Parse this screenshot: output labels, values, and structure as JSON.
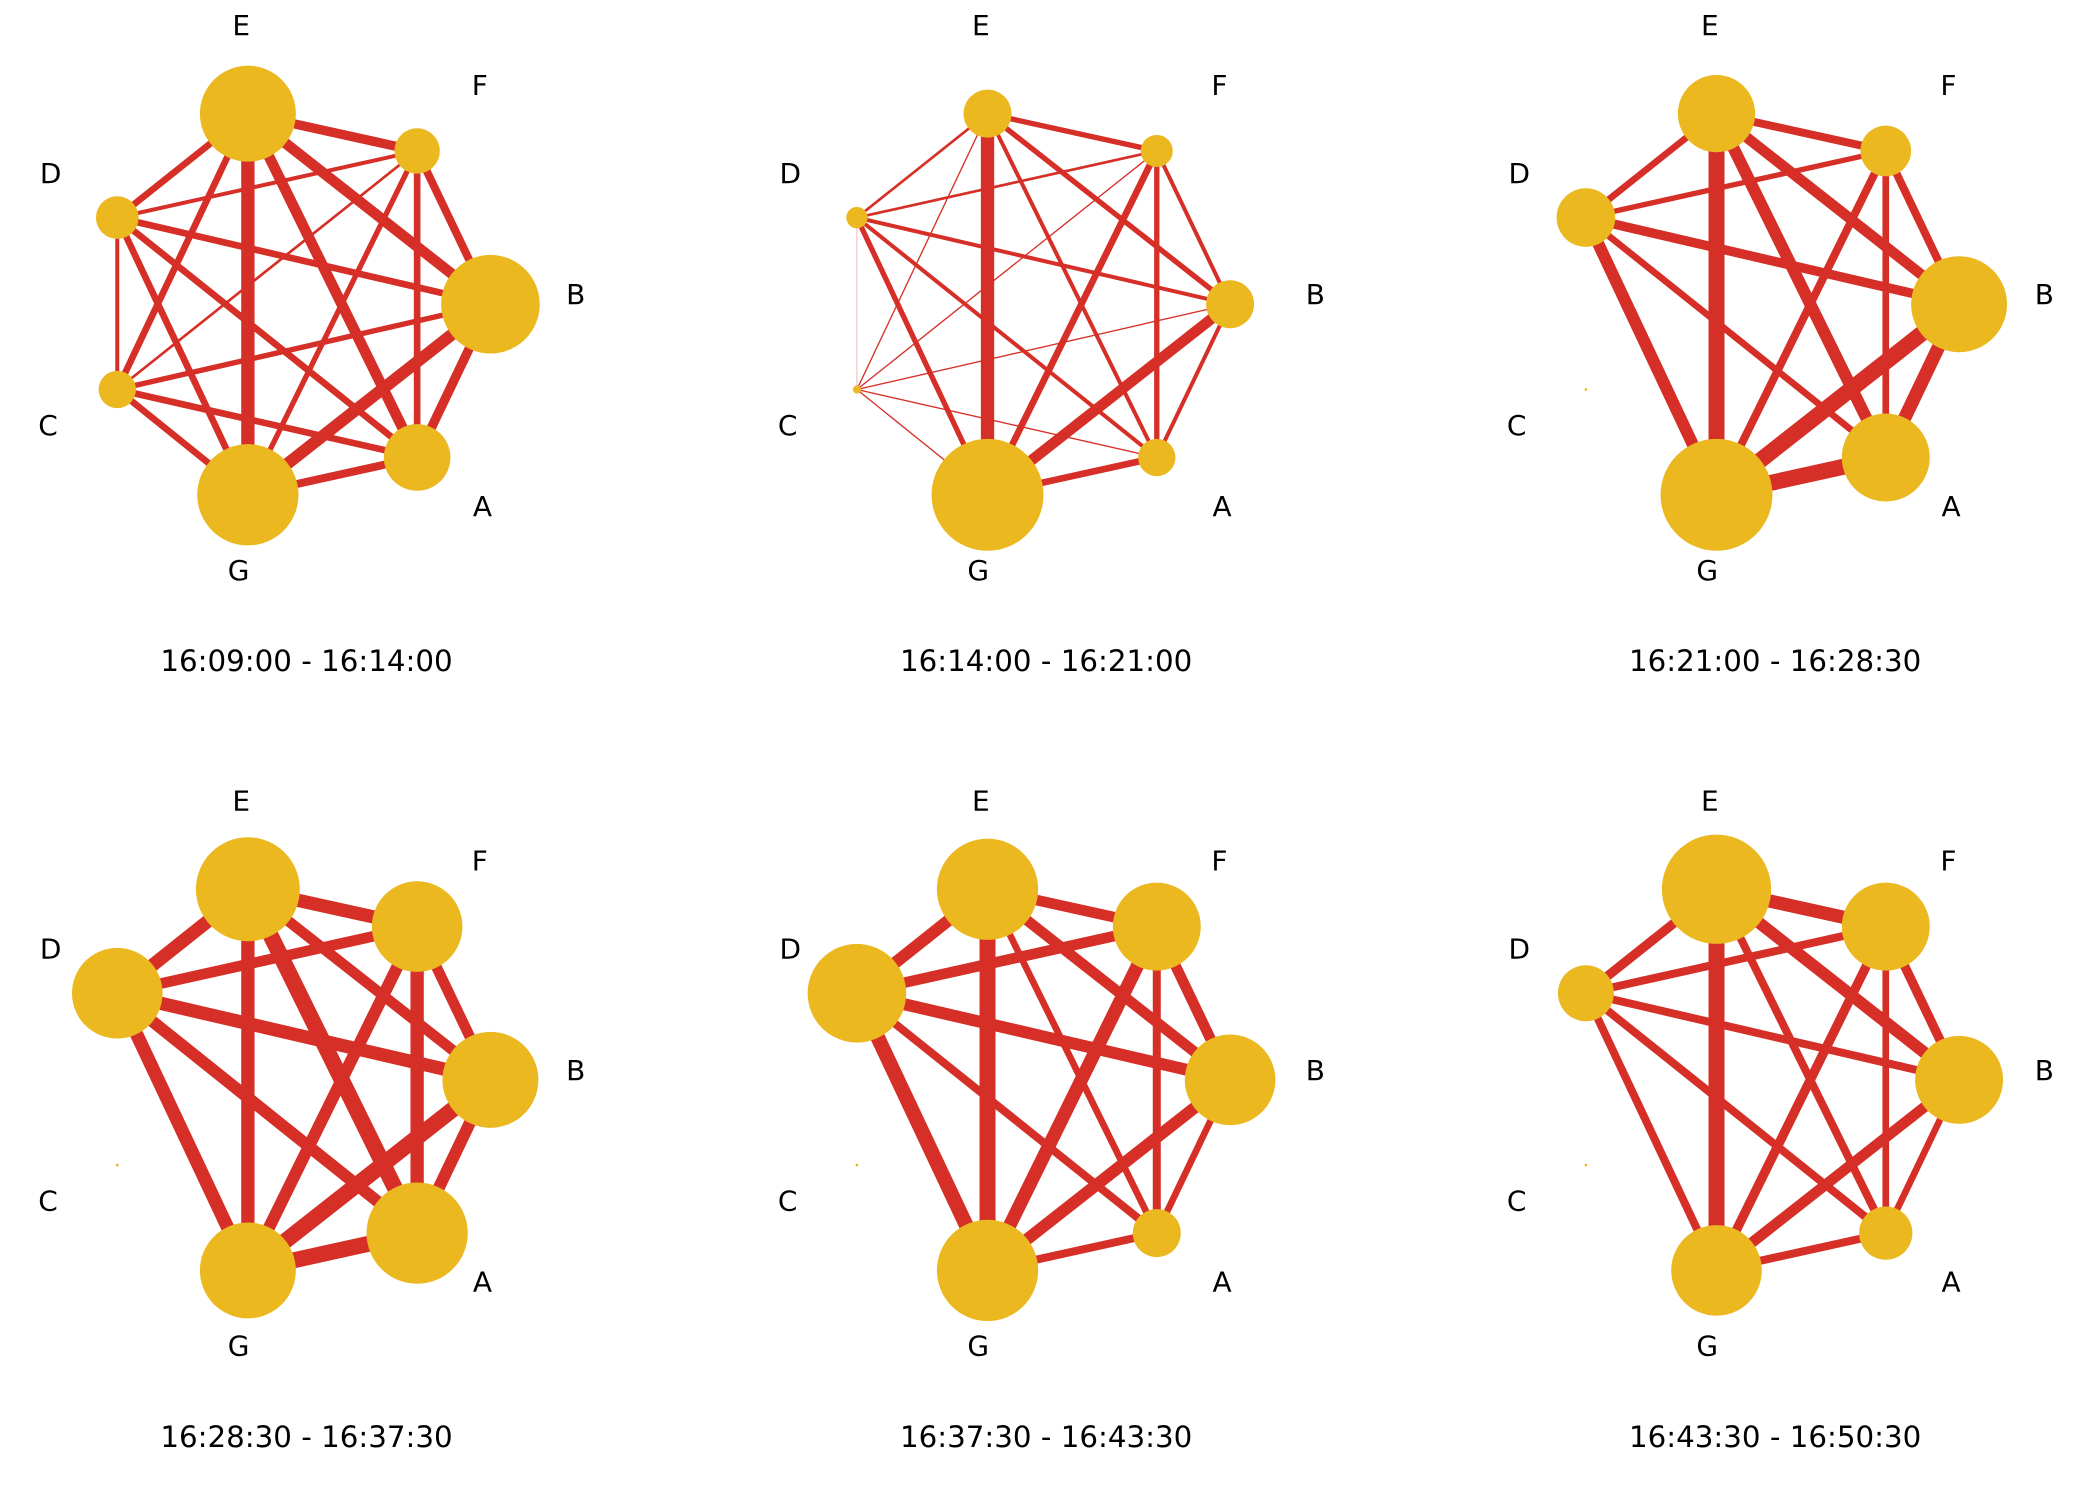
{
  "panels": [
    {
      "title": "16:09:00 - 16:14:00",
      "nodes": [
        {
          "label": "E",
          "value": 36
        },
        {
          "label": "F",
          "value": 17
        },
        {
          "label": "B",
          "value": 37
        },
        {
          "label": "A",
          "value": 25
        },
        {
          "label": "G",
          "value": 38
        },
        {
          "label": "C",
          "value": 14
        },
        {
          "label": "D",
          "value": 16
        }
      ],
      "edges": [
        {
          "source": "E",
          "target": "F",
          "weight": 7
        },
        {
          "source": "E",
          "target": "B",
          "weight": 8
        },
        {
          "source": "E",
          "target": "A",
          "weight": 8
        },
        {
          "source": "E",
          "target": "G",
          "weight": 10
        },
        {
          "source": "E",
          "target": "C",
          "weight": 5
        },
        {
          "source": "E",
          "target": "D",
          "weight": 5
        },
        {
          "source": "F",
          "target": "B",
          "weight": 6
        },
        {
          "source": "F",
          "target": "A",
          "weight": 5
        },
        {
          "source": "F",
          "target": "G",
          "weight": 4
        },
        {
          "source": "F",
          "target": "C",
          "weight": 2
        },
        {
          "source": "F",
          "target": "D",
          "weight": 3
        },
        {
          "source": "B",
          "target": "A",
          "weight": 7
        },
        {
          "source": "B",
          "target": "G",
          "weight": 9
        },
        {
          "source": "B",
          "target": "C",
          "weight": 4
        },
        {
          "source": "B",
          "target": "D",
          "weight": 5
        },
        {
          "source": "A",
          "target": "G",
          "weight": 6
        },
        {
          "source": "A",
          "target": "C",
          "weight": 5
        },
        {
          "source": "A",
          "target": "D",
          "weight": 5
        },
        {
          "source": "G",
          "target": "C",
          "weight": 5
        },
        {
          "source": "G",
          "target": "D",
          "weight": 5
        },
        {
          "source": "C",
          "target": "D",
          "weight": 3
        }
      ]
    },
    {
      "title": "16:14:00 - 16:21:00",
      "nodes": [
        {
          "label": "E",
          "value": 18
        },
        {
          "label": "F",
          "value": 12
        },
        {
          "label": "B",
          "value": 18
        },
        {
          "label": "A",
          "value": 14
        },
        {
          "label": "G",
          "value": 42
        },
        {
          "label": "C",
          "value": 3
        },
        {
          "label": "D",
          "value": 8
        }
      ],
      "edges": [
        {
          "source": "E",
          "target": "F",
          "weight": 4
        },
        {
          "source": "E",
          "target": "B",
          "weight": 4
        },
        {
          "source": "E",
          "target": "A",
          "weight": 3
        },
        {
          "source": "E",
          "target": "G",
          "weight": 10
        },
        {
          "source": "E",
          "target": "C",
          "weight": 1
        },
        {
          "source": "E",
          "target": "D",
          "weight": 2
        },
        {
          "source": "F",
          "target": "B",
          "weight": 3
        },
        {
          "source": "F",
          "target": "A",
          "weight": 4
        },
        {
          "source": "F",
          "target": "G",
          "weight": 5
        },
        {
          "source": "F",
          "target": "C",
          "weight": 1
        },
        {
          "source": "F",
          "target": "D",
          "weight": 2
        },
        {
          "source": "B",
          "target": "A",
          "weight": 3
        },
        {
          "source": "B",
          "target": "G",
          "weight": 8
        },
        {
          "source": "B",
          "target": "C",
          "weight": 1
        },
        {
          "source": "B",
          "target": "D",
          "weight": 3
        },
        {
          "source": "A",
          "target": "G",
          "weight": 5
        },
        {
          "source": "A",
          "target": "C",
          "weight": 1
        },
        {
          "source": "A",
          "target": "D",
          "weight": 3
        },
        {
          "source": "G",
          "target": "C",
          "weight": 1
        },
        {
          "source": "G",
          "target": "D",
          "weight": 4
        },
        {
          "source": "C",
          "target": "D",
          "weight": 0.5
        }
      ]
    },
    {
      "title": "16:21:00 - 16:28:30",
      "nodes": [
        {
          "label": "E",
          "value": 29
        },
        {
          "label": "F",
          "value": 19
        },
        {
          "label": "B",
          "value": 36
        },
        {
          "label": "A",
          "value": 33
        },
        {
          "label": "G",
          "value": 42
        },
        {
          "label": "C",
          "value": 1
        },
        {
          "label": "D",
          "value": 22
        }
      ],
      "edges": [
        {
          "source": "E",
          "target": "F",
          "weight": 6
        },
        {
          "source": "E",
          "target": "B",
          "weight": 8
        },
        {
          "source": "E",
          "target": "A",
          "weight": 9
        },
        {
          "source": "E",
          "target": "G",
          "weight": 12
        },
        {
          "source": "E",
          "target": "D",
          "weight": 5
        },
        {
          "source": "F",
          "target": "B",
          "weight": 6
        },
        {
          "source": "F",
          "target": "A",
          "weight": 5
        },
        {
          "source": "F",
          "target": "G",
          "weight": 6
        },
        {
          "source": "F",
          "target": "D",
          "weight": 4
        },
        {
          "source": "B",
          "target": "A",
          "weight": 10
        },
        {
          "source": "B",
          "target": "G",
          "weight": 12
        },
        {
          "source": "B",
          "target": "D",
          "weight": 7
        },
        {
          "source": "A",
          "target": "G",
          "weight": 12
        },
        {
          "source": "A",
          "target": "D",
          "weight": 5
        },
        {
          "source": "G",
          "target": "D",
          "weight": 9
        }
      ]
    },
    {
      "title": "16:28:30 - 16:37:30",
      "nodes": [
        {
          "label": "E",
          "value": 39
        },
        {
          "label": "F",
          "value": 34
        },
        {
          "label": "B",
          "value": 36
        },
        {
          "label": "A",
          "value": 38
        },
        {
          "label": "G",
          "value": 36
        },
        {
          "label": "C",
          "value": 1
        },
        {
          "label": "D",
          "value": 34
        }
      ],
      "edges": [
        {
          "source": "E",
          "target": "F",
          "weight": 10
        },
        {
          "source": "E",
          "target": "B",
          "weight": 8
        },
        {
          "source": "E",
          "target": "A",
          "weight": 12
        },
        {
          "source": "E",
          "target": "G",
          "weight": 10
        },
        {
          "source": "E",
          "target": "D",
          "weight": 10
        },
        {
          "source": "F",
          "target": "B",
          "weight": 8
        },
        {
          "source": "F",
          "target": "A",
          "weight": 10
        },
        {
          "source": "F",
          "target": "G",
          "weight": 9
        },
        {
          "source": "F",
          "target": "D",
          "weight": 8
        },
        {
          "source": "B",
          "target": "A",
          "weight": 9
        },
        {
          "source": "B",
          "target": "G",
          "weight": 12
        },
        {
          "source": "B",
          "target": "D",
          "weight": 10
        },
        {
          "source": "A",
          "target": "G",
          "weight": 12
        },
        {
          "source": "A",
          "target": "D",
          "weight": 9
        },
        {
          "source": "G",
          "target": "D",
          "weight": 10
        }
      ]
    },
    {
      "title": "16:37:30 - 16:43:30",
      "nodes": [
        {
          "label": "E",
          "value": 38
        },
        {
          "label": "F",
          "value": 33
        },
        {
          "label": "B",
          "value": 34
        },
        {
          "label": "A",
          "value": 18
        },
        {
          "label": "G",
          "value": 38
        },
        {
          "label": "C",
          "value": 1
        },
        {
          "label": "D",
          "value": 37
        }
      ],
      "edges": [
        {
          "source": "E",
          "target": "F",
          "weight": 8
        },
        {
          "source": "E",
          "target": "B",
          "weight": 8
        },
        {
          "source": "E",
          "target": "A",
          "weight": 5
        },
        {
          "source": "E",
          "target": "G",
          "weight": 12
        },
        {
          "source": "E",
          "target": "D",
          "weight": 9
        },
        {
          "source": "F",
          "target": "B",
          "weight": 8
        },
        {
          "source": "F",
          "target": "A",
          "weight": 6
        },
        {
          "source": "F",
          "target": "G",
          "weight": 10
        },
        {
          "source": "F",
          "target": "D",
          "weight": 8
        },
        {
          "source": "B",
          "target": "A",
          "weight": 5
        },
        {
          "source": "B",
          "target": "G",
          "weight": 9
        },
        {
          "source": "B",
          "target": "D",
          "weight": 9
        },
        {
          "source": "A",
          "target": "G",
          "weight": 6
        },
        {
          "source": "A",
          "target": "D",
          "weight": 6
        },
        {
          "source": "G",
          "target": "D",
          "weight": 11
        }
      ]
    },
    {
      "title": "16:43:30 - 16:50:30",
      "nodes": [
        {
          "label": "E",
          "value": 41
        },
        {
          "label": "F",
          "value": 33
        },
        {
          "label": "B",
          "value": 33
        },
        {
          "label": "A",
          "value": 20
        },
        {
          "label": "G",
          "value": 34
        },
        {
          "label": "C",
          "value": 1
        },
        {
          "label": "D",
          "value": 21
        }
      ],
      "edges": [
        {
          "source": "E",
          "target": "F",
          "weight": 10
        },
        {
          "source": "E",
          "target": "B",
          "weight": 9
        },
        {
          "source": "E",
          "target": "A",
          "weight": 6
        },
        {
          "source": "E",
          "target": "G",
          "weight": 12
        },
        {
          "source": "E",
          "target": "D",
          "weight": 7
        },
        {
          "source": "F",
          "target": "B",
          "weight": 7
        },
        {
          "source": "F",
          "target": "A",
          "weight": 5
        },
        {
          "source": "F",
          "target": "G",
          "weight": 7
        },
        {
          "source": "F",
          "target": "D",
          "weight": 6
        },
        {
          "source": "B",
          "target": "A",
          "weight": 5
        },
        {
          "source": "B",
          "target": "G",
          "weight": 8
        },
        {
          "source": "B",
          "target": "D",
          "weight": 6
        },
        {
          "source": "A",
          "target": "G",
          "weight": 6
        },
        {
          "source": "A",
          "target": "D",
          "weight": 6
        },
        {
          "source": "G",
          "target": "D",
          "weight": 6
        }
      ]
    }
  ]
}
